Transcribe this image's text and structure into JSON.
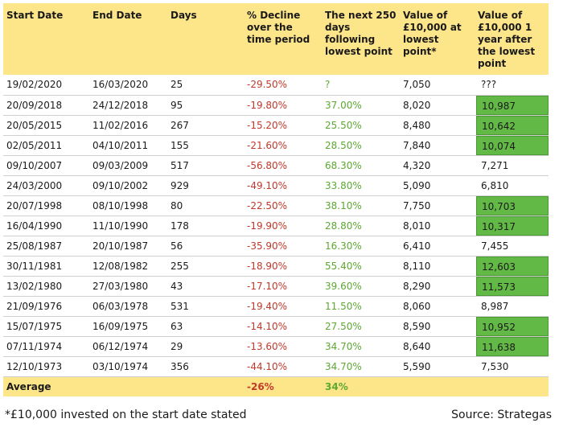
{
  "headers": [
    "Start Date",
    "End Date",
    "Days",
    "% Decline over the time period",
    "The next 250 days following lowest point",
    "Value of £10,000 at lowest point*",
    "Value of £10,000 1 year after the lowest point"
  ],
  "rows": [
    {
      "start": "19/02/2020",
      "end": "16/03/2020",
      "days": "25",
      "decline": "-29.50%",
      "next250": "?",
      "low": "7,050",
      "after": "???",
      "highlight": false
    },
    {
      "start": "20/09/2018",
      "end": "24/12/2018",
      "days": "95",
      "decline": "-19.80%",
      "next250": "37.00%",
      "low": "8,020",
      "after": "10,987",
      "highlight": true
    },
    {
      "start": "20/05/2015",
      "end": "11/02/2016",
      "days": "267",
      "decline": "-15.20%",
      "next250": "25.50%",
      "low": "8,480",
      "after": "10,642",
      "highlight": true
    },
    {
      "start": "02/05/2011",
      "end": "04/10/2011",
      "days": "155",
      "decline": "-21.60%",
      "next250": "28.50%",
      "low": "7,840",
      "after": "10,074",
      "highlight": true
    },
    {
      "start": "09/10/2007",
      "end": "09/03/2009",
      "days": "517",
      "decline": "-56.80%",
      "next250": "68.30%",
      "low": "4,320",
      "after": "7,271",
      "highlight": false
    },
    {
      "start": "24/03/2000",
      "end": "09/10/2002",
      "days": "929",
      "decline": "-49.10%",
      "next250": "33.80%",
      "low": "5,090",
      "after": "6,810",
      "highlight": false
    },
    {
      "start": "20/07/1998",
      "end": "08/10/1998",
      "days": "80",
      "decline": "-22.50%",
      "next250": "38.10%",
      "low": "7,750",
      "after": "10,703",
      "highlight": true
    },
    {
      "start": "16/04/1990",
      "end": "11/10/1990",
      "days": "178",
      "decline": "-19.90%",
      "next250": "28.80%",
      "low": "8,010",
      "after": "10,317",
      "highlight": true
    },
    {
      "start": "25/08/1987",
      "end": "20/10/1987",
      "days": "56",
      "decline": "-35.90%",
      "next250": "16.30%",
      "low": "6,410",
      "after": "7,455",
      "highlight": false
    },
    {
      "start": "30/11/1981",
      "end": "12/08/1982",
      "days": "255",
      "decline": "-18.90%",
      "next250": "55.40%",
      "low": "8,110",
      "after": "12,603",
      "highlight": true
    },
    {
      "start": "13/02/1980",
      "end": "27/03/1980",
      "days": "43",
      "decline": "-17.10%",
      "next250": "39.60%",
      "low": "8,290",
      "after": "11,573",
      "highlight": true
    },
    {
      "start": "21/09/1976",
      "end": "06/03/1978",
      "days": "531",
      "decline": "-19.40%",
      "next250": "11.50%",
      "low": "8,060",
      "after": "8,987",
      "highlight": false
    },
    {
      "start": "15/07/1975",
      "end": "16/09/1975",
      "days": "63",
      "decline": "-14.10%",
      "next250": "27.50%",
      "low": "8,590",
      "after": "10,952",
      "highlight": true
    },
    {
      "start": "07/11/1974",
      "end": "06/12/1974",
      "days": "29",
      "decline": "-13.60%",
      "next250": "34.70%",
      "low": "8,640",
      "after": "11,638",
      "highlight": true
    },
    {
      "start": "12/10/1973",
      "end": "03/10/1974",
      "days": "356",
      "decline": "-44.10%",
      "next250": "34.70%",
      "low": "5,590",
      "after": "7,530",
      "highlight": false
    }
  ],
  "average": {
    "label": "Average",
    "decline": "-26%",
    "next250": "34%"
  },
  "footnote": "*£10,000 invested on the start date stated",
  "source": "Source: Strategas",
  "colors": {
    "header_bg": "#fde58a",
    "negative": "#c0392b",
    "positive": "#5da832",
    "highlight": "#63b946"
  }
}
